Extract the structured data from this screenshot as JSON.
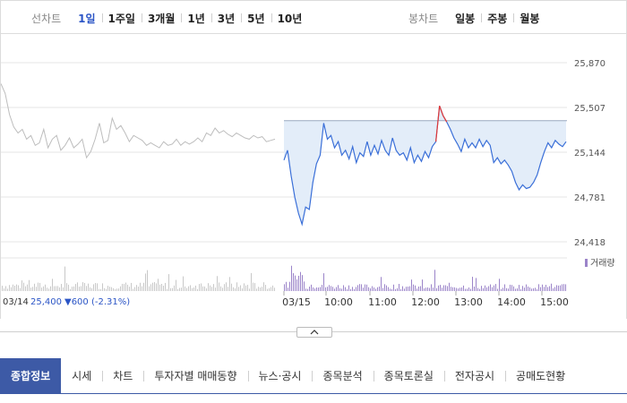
{
  "toolbar": {
    "line_chart_caption": "선차트",
    "line_periods": [
      {
        "label": "1일",
        "active": true
      },
      {
        "label": "1주일",
        "active": false
      },
      {
        "label": "3개월",
        "active": false
      },
      {
        "label": "1년",
        "active": false
      },
      {
        "label": "3년",
        "active": false
      },
      {
        "label": "5년",
        "active": false
      },
      {
        "label": "10년",
        "active": false
      }
    ],
    "candle_chart_caption": "봉차트",
    "candle_periods": [
      {
        "label": "일봉"
      },
      {
        "label": "주봉"
      },
      {
        "label": "월봉"
      }
    ]
  },
  "chart_data": {
    "type": "line",
    "y_ticks": [
      25870,
      25507,
      25144,
      24781,
      24418
    ],
    "ylim": [
      24418,
      25870
    ],
    "reference_price": 25400,
    "prev_day": {
      "date_label": "03/14",
      "close": "25,400",
      "change": "▼600",
      "change_pct": "(-2.31%)"
    },
    "x_tick_labels": [
      "03/15",
      "10:00",
      "11:00",
      "12:00",
      "13:00",
      "14:00",
      "15:00"
    ],
    "volume_label": "거래량",
    "colors": {
      "prev_line": "#bdbdbd",
      "today_line": "#3a6fd8",
      "up_line": "#e53935",
      "fill": "#e3edf9",
      "volume_prev": "#c8c8c8",
      "volume_today": "#9b84c9",
      "down_text": "#2b55c6"
    },
    "prev_series": [
      25700,
      25620,
      25450,
      25350,
      25300,
      25330,
      25250,
      25280,
      25200,
      25220,
      25330,
      25180,
      25250,
      25280,
      25160,
      25200,
      25260,
      25180,
      25210,
      25250,
      25100,
      25150,
      25250,
      25380,
      25220,
      25240,
      25420,
      25330,
      25360,
      25300,
      25230,
      25280,
      25260,
      25240,
      25200,
      25220,
      25200,
      25180,
      25230,
      25200,
      25210,
      25250,
      25200,
      25230,
      25210,
      25230,
      25260,
      25230,
      25300,
      25280,
      25340,
      25300,
      25320,
      25290,
      25270,
      25300,
      25280,
      25260,
      25250,
      25280,
      25260,
      25270,
      25230,
      25240,
      25250
    ],
    "today_series": [
      25080,
      25160,
      24950,
      24780,
      24650,
      24560,
      24700,
      24680,
      24900,
      25050,
      25120,
      25380,
      25250,
      25280,
      25180,
      25230,
      25120,
      25160,
      25090,
      25190,
      25060,
      25140,
      25110,
      25230,
      25120,
      25200,
      25130,
      25240,
      25160,
      25120,
      25260,
      25160,
      25120,
      25140,
      25080,
      25180,
      25060,
      25120,
      25070,
      25150,
      25100,
      25190,
      25230,
      25520,
      25440,
      25390,
      25330,
      25260,
      25210,
      25150,
      25250,
      25180,
      25220,
      25180,
      25250,
      25190,
      25240,
      25200,
      25060,
      25100,
      25050,
      25080,
      25040,
      24990,
      24900,
      24840,
      24880,
      24850,
      24860,
      24900,
      24960,
      25060,
      25150,
      25220,
      25180,
      25240,
      25210,
      25190,
      25230
    ]
  },
  "tabs": [
    {
      "label": "종합정보",
      "active": true
    },
    {
      "label": "시세",
      "active": false
    },
    {
      "label": "차트",
      "active": false
    },
    {
      "label": "투자자별 매매동향",
      "active": false
    },
    {
      "label": "뉴스·공시",
      "active": false
    },
    {
      "label": "종목분석",
      "active": false
    },
    {
      "label": "종목토론실",
      "active": false
    },
    {
      "label": "전자공시",
      "active": false
    },
    {
      "label": "공매도현황",
      "active": false
    }
  ]
}
